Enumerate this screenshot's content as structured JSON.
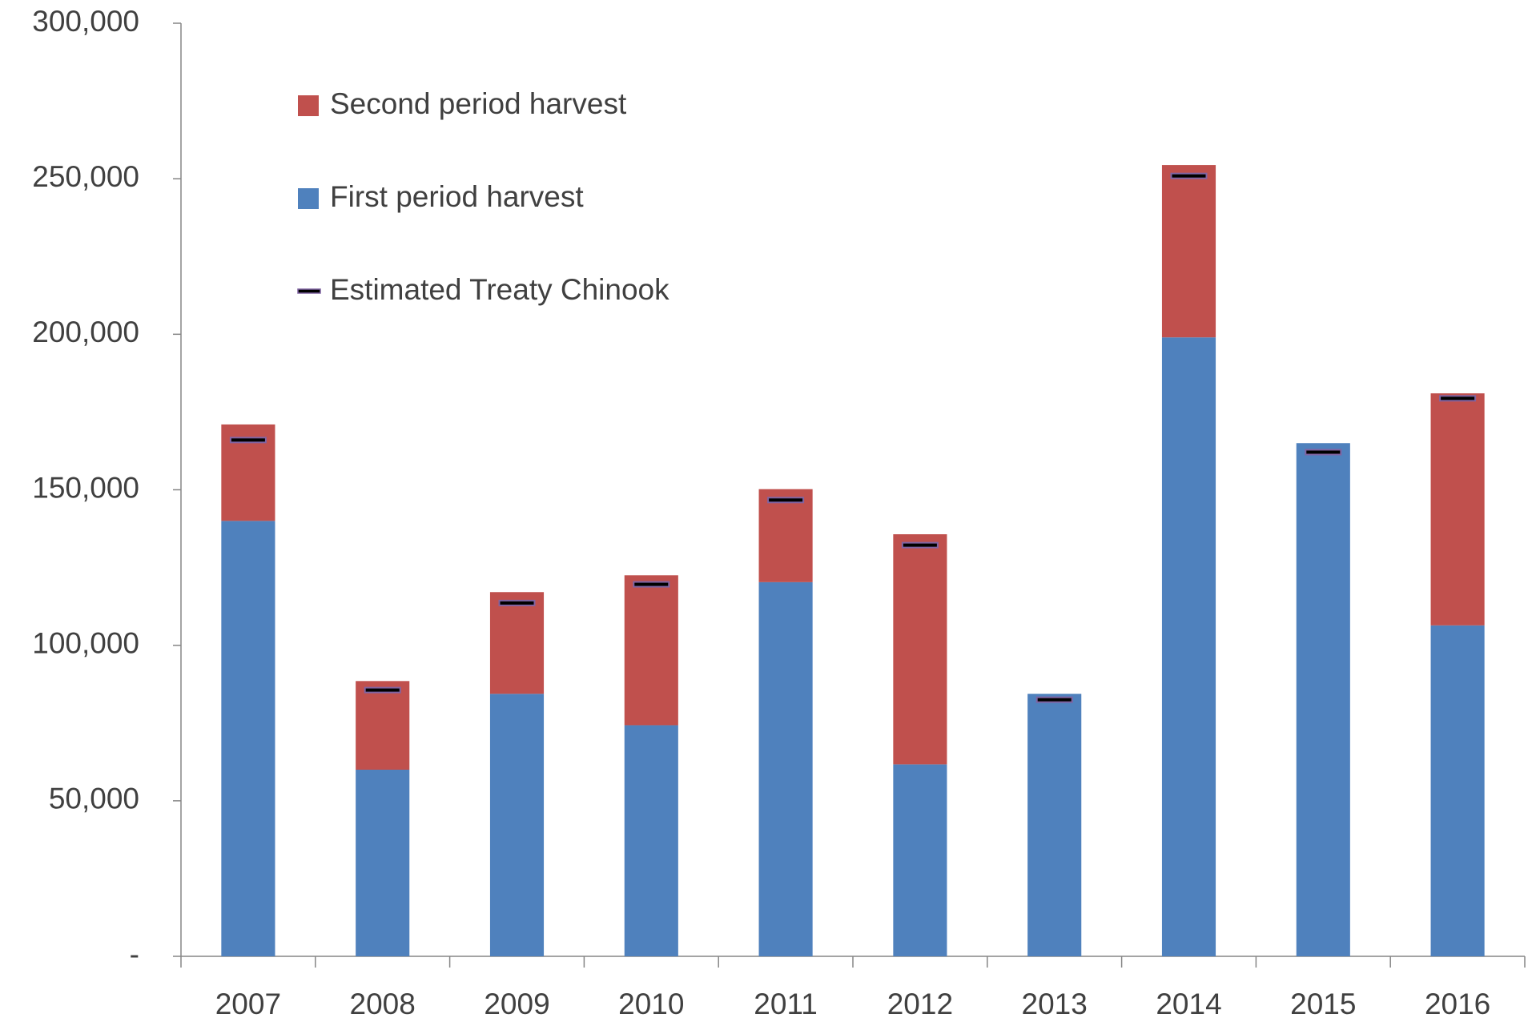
{
  "chart_data": {
    "type": "bar",
    "categories": [
      "2007",
      "2008",
      "2009",
      "2010",
      "2011",
      "2012",
      "2013",
      "2014",
      "2015",
      "2016"
    ],
    "series": [
      {
        "name": "First period harvest",
        "color": "#4f81bd",
        "values": [
          140000,
          60000,
          84400,
          74300,
          120300,
          61700,
          84400,
          199000,
          165000,
          106400
        ]
      },
      {
        "name": "Second period harvest",
        "color": "#c0504d",
        "values": [
          31000,
          28500,
          32700,
          48200,
          29900,
          74000,
          0,
          55400,
          0,
          74600
        ]
      },
      {
        "name": "Estimated Treaty Chinook",
        "color": "#000000",
        "outline": "#8064a2",
        "values": [
          166000,
          85600,
          113600,
          119600,
          146700,
          132200,
          82500,
          250900,
          162100,
          179400
        ]
      }
    ],
    "ylim": [
      0,
      300000
    ],
    "yticks": [
      {
        "value": 0,
        "label": "-"
      },
      {
        "value": 50000,
        "label": "50,000"
      },
      {
        "value": 100000,
        "label": "100,000"
      },
      {
        "value": 150000,
        "label": "150,000"
      },
      {
        "value": 200000,
        "label": "200,000"
      },
      {
        "value": 250000,
        "label": "250,000"
      },
      {
        "value": 300000,
        "label": "300,000"
      }
    ],
    "grid": false
  }
}
